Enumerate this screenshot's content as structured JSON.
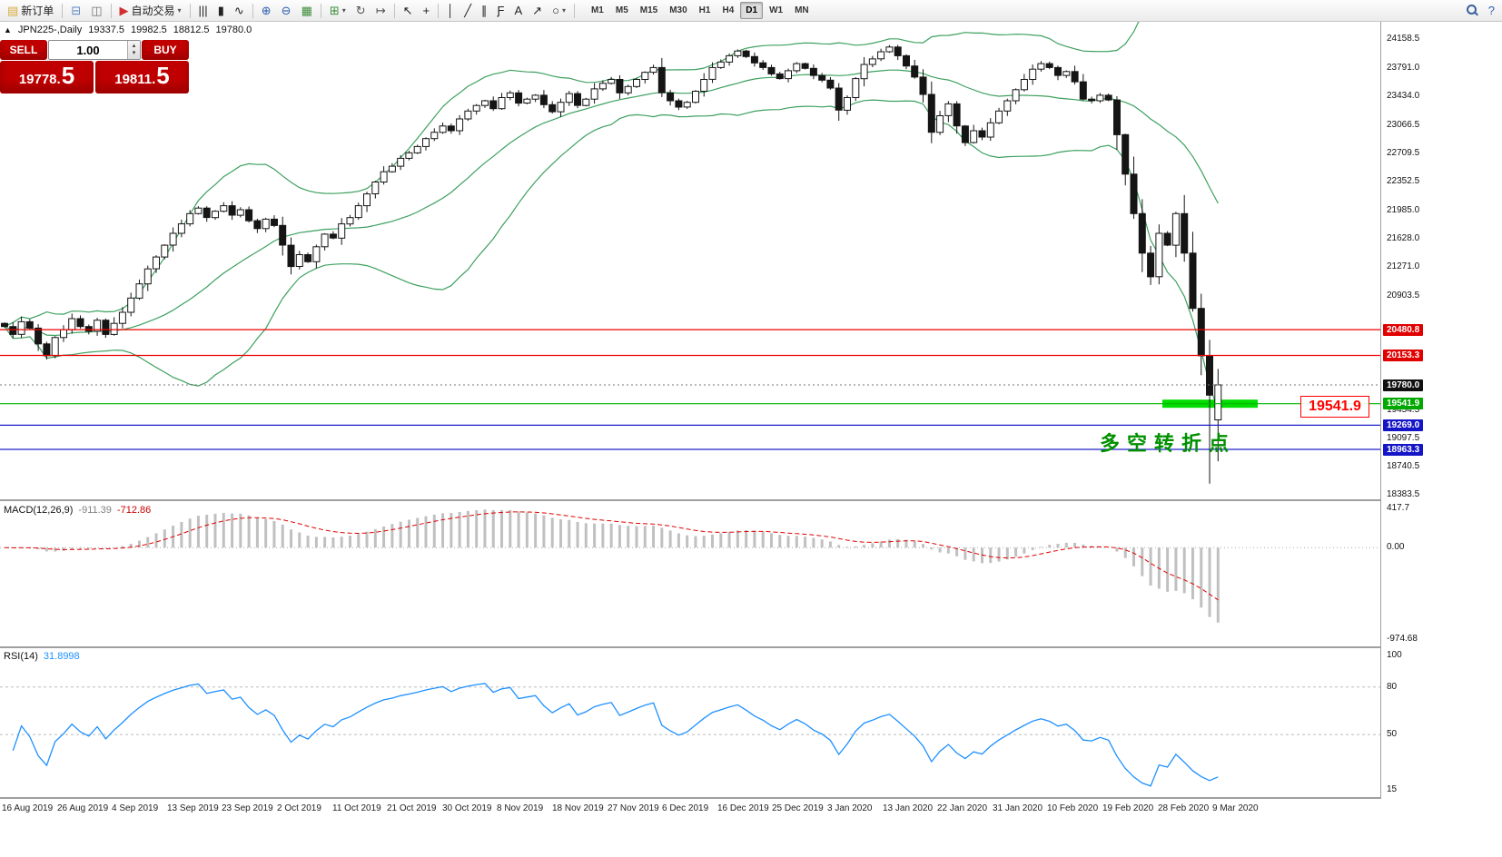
{
  "toolbar": {
    "items": [
      {
        "name": "new-order-button",
        "glyph": "▤",
        "glyph_color": "#d8aa3c",
        "label": "新订单"
      },
      {
        "sep": true
      },
      {
        "name": "charts-window-icon",
        "glyph": "⊟",
        "glyph_color": "#5b87c5"
      },
      {
        "name": "profiles-icon",
        "glyph": "◫",
        "glyph_color": "#6f6f6f"
      },
      {
        "sep": true
      },
      {
        "name": "auto-trading-button",
        "glyph": "▶",
        "glyph_color": "#d03030",
        "label": "自动交易",
        "caret": true
      },
      {
        "sep": true
      },
      {
        "name": "bar-chart-icon",
        "glyph": "|||"
      },
      {
        "name": "candlestick-chart-icon",
        "glyph": "▮"
      },
      {
        "name": "line-chart-icon",
        "glyph": "∿"
      },
      {
        "sep": true
      },
      {
        "name": "zoom-in-icon",
        "glyph": "⊕",
        "glyph_color": "#2d5fae"
      },
      {
        "name": "zoom-out-icon",
        "glyph": "⊖",
        "glyph_color": "#2d5fae"
      },
      {
        "name": "tile-windows-icon",
        "glyph": "▦",
        "glyph_color": "#3c8c3c"
      },
      {
        "sep": true
      },
      {
        "name": "new-chart-icon",
        "glyph": "⊞",
        "glyph_color": "#3c8c3c",
        "caret": true
      },
      {
        "name": "auto-scroll-icon",
        "glyph": "↻",
        "glyph_color": "#555555"
      },
      {
        "name": "chart-shift-icon",
        "glyph": "↦",
        "glyph_color": "#555555"
      },
      {
        "sep": true
      },
      {
        "name": "cursor-icon",
        "glyph": "↖"
      },
      {
        "name": "crosshair-icon",
        "glyph": "+"
      },
      {
        "sep": true
      },
      {
        "name": "vertical-line-icon",
        "glyph": "│"
      },
      {
        "name": "trendline-icon",
        "glyph": "╱"
      },
      {
        "name": "equidistant-channel-icon",
        "glyph": "∥"
      },
      {
        "name": "fibonacci-icon",
        "glyph": "Ƒ"
      },
      {
        "name": "text-label-icon",
        "glyph": "A"
      },
      {
        "name": "arrow-objects-icon",
        "glyph": "↗"
      },
      {
        "name": "shapes-icon",
        "glyph": "○",
        "caret": true
      },
      {
        "sep": true
      }
    ],
    "timeframes": [
      {
        "label": "M1"
      },
      {
        "label": "M5"
      },
      {
        "label": "M15"
      },
      {
        "label": "M30"
      },
      {
        "label": "H1"
      },
      {
        "label": "H4"
      },
      {
        "label": "D1",
        "active": true
      },
      {
        "label": "W1"
      },
      {
        "label": "MN"
      }
    ],
    "right_items": [
      {
        "name": "search-icon",
        "type": "magnifier"
      },
      {
        "name": "help-icon",
        "glyph": "?",
        "glyph_color": "#2d5fae"
      }
    ]
  },
  "symbol_info": {
    "collapse_arrow": "▲",
    "title": "JPN225-,Daily",
    "open": "19337.5",
    "high": "19982.5",
    "low": "18812.5",
    "close": "19780.0"
  },
  "trade_panel": {
    "sell_label": "SELL",
    "buy_label": "BUY",
    "volume": "1.00",
    "sell_price_main": "19778.",
    "sell_price_big": "5",
    "buy_price_main": "19811.",
    "buy_price_big": "5"
  },
  "chart_data": {
    "type": "candlestick",
    "symbol": "JPN225-",
    "timeframe": "Daily",
    "last_ohlc": {
      "open": 19337.5,
      "high": 19982.5,
      "low": 18812.5,
      "close": 19780.0
    },
    "ylim": [
      18383.5,
      24158.5
    ],
    "closes": [
      20520,
      20420,
      20580,
      20500,
      20300,
      20150,
      20380,
      20480,
      20620,
      20520,
      20460,
      20600,
      20420,
      20560,
      20700,
      20880,
      21060,
      21250,
      21400,
      21550,
      21700,
      21820,
      21950,
      22020,
      21900,
      21980,
      22050,
      21930,
      22000,
      21860,
      21760,
      21880,
      21800,
      21550,
      21280,
      21430,
      21340,
      21530,
      21690,
      21640,
      21820,
      21900,
      22050,
      22200,
      22350,
      22480,
      22550,
      22650,
      22720,
      22800,
      22900,
      22980,
      23060,
      23000,
      23150,
      23250,
      23320,
      23380,
      23280,
      23420,
      23480,
      23350,
      23400,
      23450,
      23330,
      23240,
      23360,
      23470,
      23320,
      23400,
      23530,
      23600,
      23650,
      23480,
      23560,
      23650,
      23740,
      23800,
      23480,
      23380,
      23300,
      23360,
      23500,
      23650,
      23800,
      23870,
      23950,
      24010,
      23940,
      23860,
      23800,
      23720,
      23660,
      23760,
      23850,
      23790,
      23700,
      23640,
      23540,
      23260,
      23420,
      23660,
      23840,
      23910,
      24000,
      24060,
      23950,
      23820,
      23680,
      23460,
      22980,
      23190,
      23340,
      23060,
      22850,
      23000,
      22920,
      23100,
      23250,
      23380,
      23520,
      23650,
      23780,
      23850,
      23800,
      23700,
      23750,
      23620,
      23400,
      23380,
      23450,
      23390,
      22950,
      22450,
      21950,
      21450,
      21150,
      21700,
      21550,
      21950,
      21450,
      20750,
      20150,
      19650,
      19780
    ],
    "ohlc_overrides": {
      "143": [
        20150,
        20350,
        18530,
        19650
      ],
      "144": [
        19337.5,
        19982.5,
        18812.5,
        19780.0
      ]
    },
    "overlays": [
      {
        "name": "Bollinger Bands",
        "period": 20,
        "deviation": 2
      }
    ],
    "indicators": [
      {
        "name": "MACD",
        "params": "12,26,9",
        "values": [
          -911.39,
          -712.86
        ],
        "scale": [
          417.7,
          0.0,
          -974.68
        ]
      },
      {
        "name": "RSI",
        "params": "14",
        "value": 31.8998,
        "scale": [
          100,
          80,
          50,
          15
        ]
      }
    ]
  },
  "chart_objects": {
    "horizontal_lines": [
      {
        "price": 20480.8,
        "color": "#ee0000"
      },
      {
        "price": 20153.3,
        "color": "#ee0000"
      },
      {
        "price": 19541.9,
        "color": "#00b400"
      },
      {
        "price": 19269.0,
        "color": "#2020cc"
      },
      {
        "price": 18963.3,
        "color": "#2020cc"
      }
    ],
    "current_price_line": {
      "price": 19780.0,
      "color": "#777777"
    },
    "highlight_rect": {
      "price": 19541.9,
      "color": "#00dd00"
    },
    "level_price_label": {
      "text": "19541.9",
      "color": "#ff0000"
    },
    "annotation": {
      "text": "多空转折点",
      "color": "#009000"
    }
  },
  "price_scale": {
    "plain": [
      "24158.5",
      "23791.0",
      "23434.0",
      "23066.5",
      "22709.5",
      "22352.5",
      "21985.0",
      "21628.0",
      "21271.0",
      "20903.5",
      "19454.5",
      "19097.5",
      "18740.5",
      "18383.5"
    ],
    "badges": [
      {
        "value": "20480.8",
        "color": "red"
      },
      {
        "value": "20153.3",
        "color": "red"
      },
      {
        "value": "19780.0",
        "color": "black"
      },
      {
        "value": "19541.9",
        "color": "green"
      },
      {
        "value": "19269.0",
        "color": "blue"
      },
      {
        "value": "18963.3",
        "color": "blue"
      }
    ]
  },
  "macd": {
    "label": "MACD(12,26,9)",
    "value_main": "-911.39",
    "value_signal": "-712.86",
    "scale": [
      "417.7",
      "0.00",
      "-974.68"
    ]
  },
  "rsi": {
    "label": "RSI(14)",
    "value": "31.8998",
    "scale": [
      "100",
      "80",
      "50",
      "15"
    ],
    "levels": [
      80,
      50
    ]
  },
  "time_axis": {
    "labels": [
      "16 Aug 2019",
      "26 Aug 2019",
      "4 Sep 2019",
      "13 Sep 2019",
      "23 Sep 2019",
      "2 Oct 2019",
      "11 Oct 2019",
      "21 Oct 2019",
      "30 Oct 2019",
      "8 Nov 2019",
      "18 Nov 2019",
      "27 Nov 2019",
      "6 Dec 2019",
      "16 Dec 2019",
      "25 Dec 2019",
      "3 Jan 2020",
      "13 Jan 2020",
      "22 Jan 2020",
      "31 Jan 2020",
      "10 Feb 2020",
      "19 Feb 2020",
      "28 Feb 2020",
      "9 Mar 2020"
    ]
  },
  "colors": {
    "bollinger": "#3da05f",
    "macd_hist": "#c0c0c0",
    "macd_signal": "#e00000",
    "rsi_line": "#1e90ff",
    "up": "#ffffff",
    "down": "#151515",
    "outline": "#151515"
  }
}
